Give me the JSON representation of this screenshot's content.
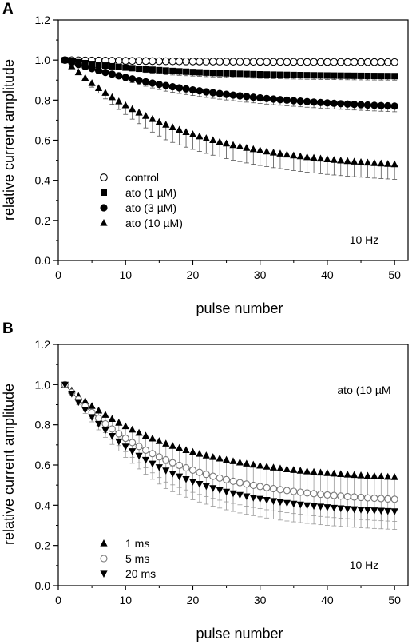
{
  "chart_data": [
    {
      "type": "scatter",
      "panel_label": "A",
      "title": "",
      "xlabel": "pulse number",
      "ylabel": "relative current amplitude",
      "xlim": [
        0,
        52
      ],
      "ylim": [
        0,
        1.2
      ],
      "xticks": [
        "0",
        "10",
        "20",
        "30",
        "40",
        "50"
      ],
      "yticks": [
        "0.0",
        "0.2",
        "0.4",
        "0.6",
        "0.8",
        "1.0",
        "1.2"
      ],
      "annotation": "10 Hz",
      "legend_position": "lower-left",
      "grid": false,
      "series": [
        {
          "name": "control",
          "marker": "circle-open",
          "end": 0.99,
          "tau": 20,
          "err_max": 0.012
        },
        {
          "name": "ato (1 µM)",
          "marker": "square-filled",
          "end": 0.92,
          "tau": 15,
          "err_max": 0.02
        },
        {
          "name": "ato (3 µM)",
          "marker": "circle-filled",
          "end": 0.77,
          "tau": 22,
          "err_max": 0.028
        },
        {
          "name": "ato (10 µM)",
          "marker": "triangle-up-filled",
          "end": 0.48,
          "tau": 17,
          "err_max": 0.075
        }
      ]
    },
    {
      "type": "scatter",
      "panel_label": "B",
      "title": "",
      "xlabel": "pulse number",
      "ylabel": "relative current amplitude",
      "xlim": [
        0,
        52
      ],
      "ylim": [
        0,
        1.2
      ],
      "xticks": [
        "0",
        "10",
        "20",
        "30",
        "40",
        "50"
      ],
      "yticks": [
        "0.0",
        "0.2",
        "0.4",
        "0.6",
        "0.8",
        "1.0",
        "1.2"
      ],
      "annotation": "10 Hz",
      "annotation_top": "ato (10 µM",
      "legend_position": "lower-left",
      "grid": false,
      "series": [
        {
          "name": "1 ms",
          "marker": "triangle-up-filled",
          "end": 0.54,
          "tau": 16,
          "err_max": 0.1
        },
        {
          "name": "5 ms",
          "marker": "circle-open-gray",
          "end": 0.43,
          "tau": 15,
          "err_max": 0.11,
          "fit": true
        },
        {
          "name": "20 ms",
          "marker": "triangle-down-filled",
          "end": 0.37,
          "tau": 14,
          "err_max": 0.09
        }
      ]
    }
  ]
}
